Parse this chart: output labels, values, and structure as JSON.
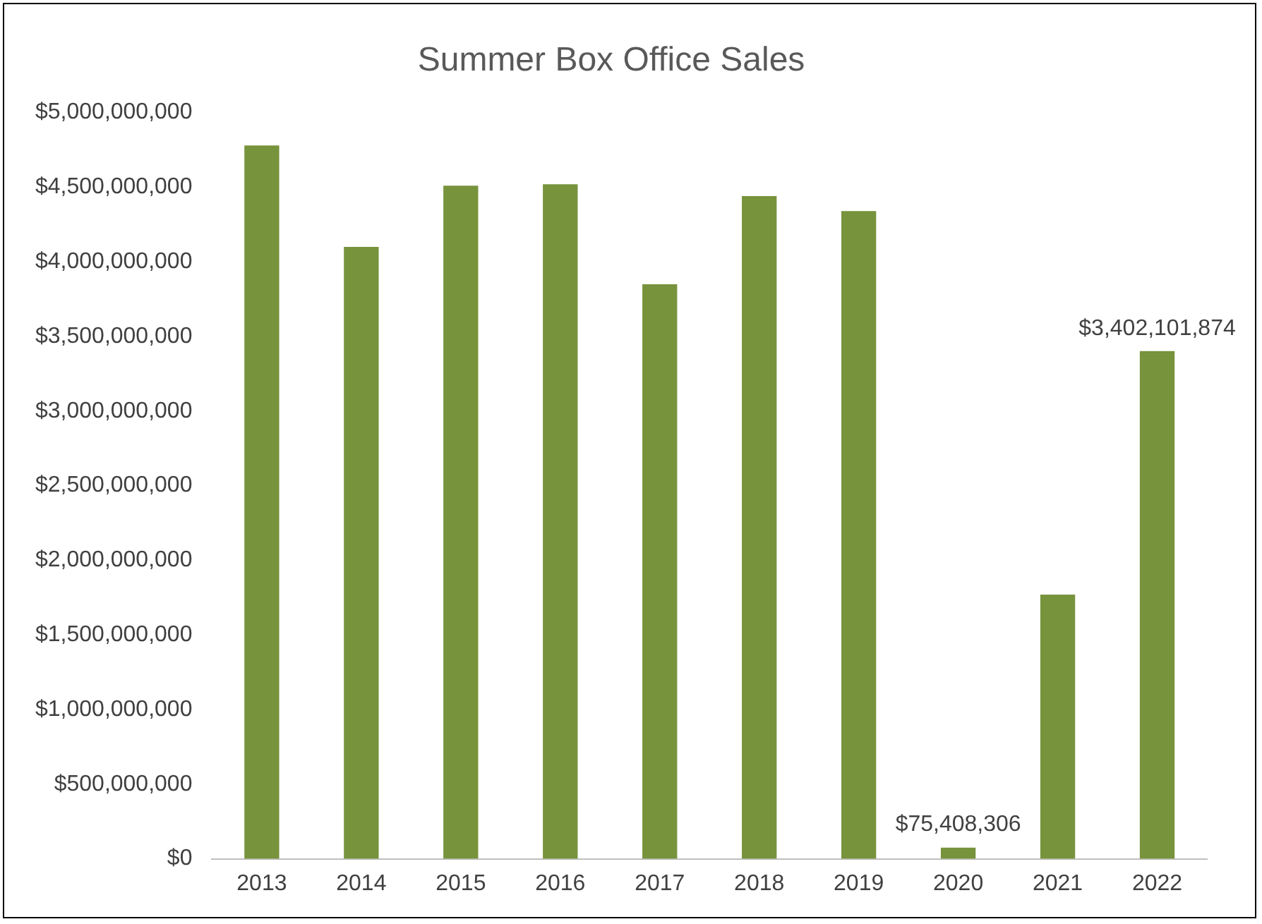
{
  "chart_data": {
    "type": "bar",
    "title": "Summer Box Office Sales",
    "categories": [
      "2013",
      "2014",
      "2015",
      "2016",
      "2017",
      "2018",
      "2019",
      "2020",
      "2021",
      "2022"
    ],
    "values": [
      4780000000,
      4100000000,
      4510000000,
      4520000000,
      3850000000,
      4440000000,
      4340000000,
      75408306,
      1770000000,
      3402101874
    ],
    "value_labels": [
      null,
      null,
      null,
      null,
      null,
      null,
      null,
      "$75,408,306",
      null,
      "$3,402,101,874"
    ],
    "color": "#77933c",
    "ylim": [
      0,
      5000000000
    ],
    "yticks": [
      {
        "value": 0,
        "label": "$0"
      },
      {
        "value": 500000000,
        "label": "$500,000,000"
      },
      {
        "value": 1000000000,
        "label": "$1,000,000,000"
      },
      {
        "value": 1500000000,
        "label": "$1,500,000,000"
      },
      {
        "value": 2000000000,
        "label": "$2,000,000,000"
      },
      {
        "value": 2500000000,
        "label": "$2,500,000,000"
      },
      {
        "value": 3000000000,
        "label": "$3,000,000,000"
      },
      {
        "value": 3500000000,
        "label": "$3,500,000,000"
      },
      {
        "value": 4000000000,
        "label": "$4,000,000,000"
      },
      {
        "value": 4500000000,
        "label": "$4,500,000,000"
      },
      {
        "value": 5000000000,
        "label": "$5,000,000,000"
      }
    ],
    "grid": false,
    "legend": false
  }
}
